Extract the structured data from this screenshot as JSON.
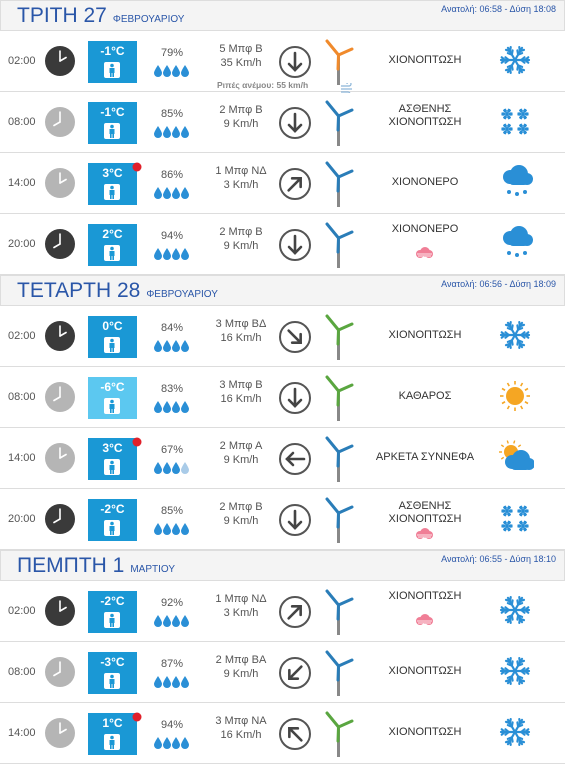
{
  "days": [
    {
      "title": "ΤΡΙΤΗ 27",
      "month": "ΦΕΒΡΟΥΑΡΙΟΥ",
      "sun": "Ανατολή: 06:58 - Δύση 18:08",
      "rows": [
        {
          "time": "02:00",
          "temp": "-1°C",
          "humidity": "79%",
          "wind": "5 Μπφ Β",
          "speed": "35 Km/h",
          "condition": "ΧΙΟΝΟΠΤΩΣΗ",
          "gust": "Ριπές ανέμου: 55 km/h"
        },
        {
          "time": "08:00",
          "temp": "-1°C",
          "humidity": "85%",
          "wind": "2 Μπφ Β",
          "speed": "9 Km/h",
          "condition": "ΑΣΘΕΝΗΣ ΧΙΟΝΟΠΤΩΣΗ"
        },
        {
          "time": "14:00",
          "temp": "3°C",
          "humidity": "86%",
          "wind": "1 Μπφ ΝΔ",
          "speed": "3 Km/h",
          "condition": "ΧΙΟΝΟΝΕΡΟ"
        },
        {
          "time": "20:00",
          "temp": "2°C",
          "humidity": "94%",
          "wind": "2 Μπφ Β",
          "speed": "9 Km/h",
          "condition": "ΧΙΟΝΟΝΕΡΟ"
        }
      ]
    },
    {
      "title": "ΤΕΤΑΡΤΗ 28",
      "month": "ΦΕΒΡΟΥΑΡΙΟΥ",
      "sun": "Ανατολή: 06:56 - Δύση 18:09",
      "rows": [
        {
          "time": "02:00",
          "temp": "0°C",
          "humidity": "84%",
          "wind": "3 Μπφ ΒΔ",
          "speed": "16 Km/h",
          "condition": "ΧΙΟΝΟΠΤΩΣΗ"
        },
        {
          "time": "08:00",
          "temp": "-6°C",
          "humidity": "83%",
          "wind": "3 Μπφ Β",
          "speed": "16 Km/h",
          "condition": "ΚΑΘΑΡΟΣ"
        },
        {
          "time": "14:00",
          "temp": "3°C",
          "humidity": "67%",
          "wind": "2 Μπφ Α",
          "speed": "9 Km/h",
          "condition": "ΑΡΚΕΤΑ ΣΥΝΝΕΦΑ"
        },
        {
          "time": "20:00",
          "temp": "-2°C",
          "humidity": "85%",
          "wind": "2 Μπφ Β",
          "speed": "9 Km/h",
          "condition": "ΑΣΘΕΝΗΣ ΧΙΟΝΟΠΤΩΣΗ"
        }
      ]
    },
    {
      "title": "ΠΕΜΠΤΗ 1",
      "month": "ΜΑΡΤΙΟΥ",
      "sun": "Ανατολή: 06:55 - Δύση 18:10",
      "rows": [
        {
          "time": "02:00",
          "temp": "-2°C",
          "humidity": "92%",
          "wind": "1 Μπφ ΝΔ",
          "speed": "3 Km/h",
          "condition": "ΧΙΟΝΟΠΤΩΣΗ"
        },
        {
          "time": "08:00",
          "temp": "-3°C",
          "humidity": "87%",
          "wind": "2 Μπφ ΒΑ",
          "speed": "9 Km/h",
          "condition": "ΧΙΟΝΟΠΤΩΣΗ"
        },
        {
          "time": "14:00",
          "temp": "1°C",
          "humidity": "94%",
          "wind": "3 Μπφ ΝΑ",
          "speed": "16 Km/h",
          "condition": "ΧΙΟΝΟΠΤΩΣΗ"
        }
      ]
    }
  ]
}
